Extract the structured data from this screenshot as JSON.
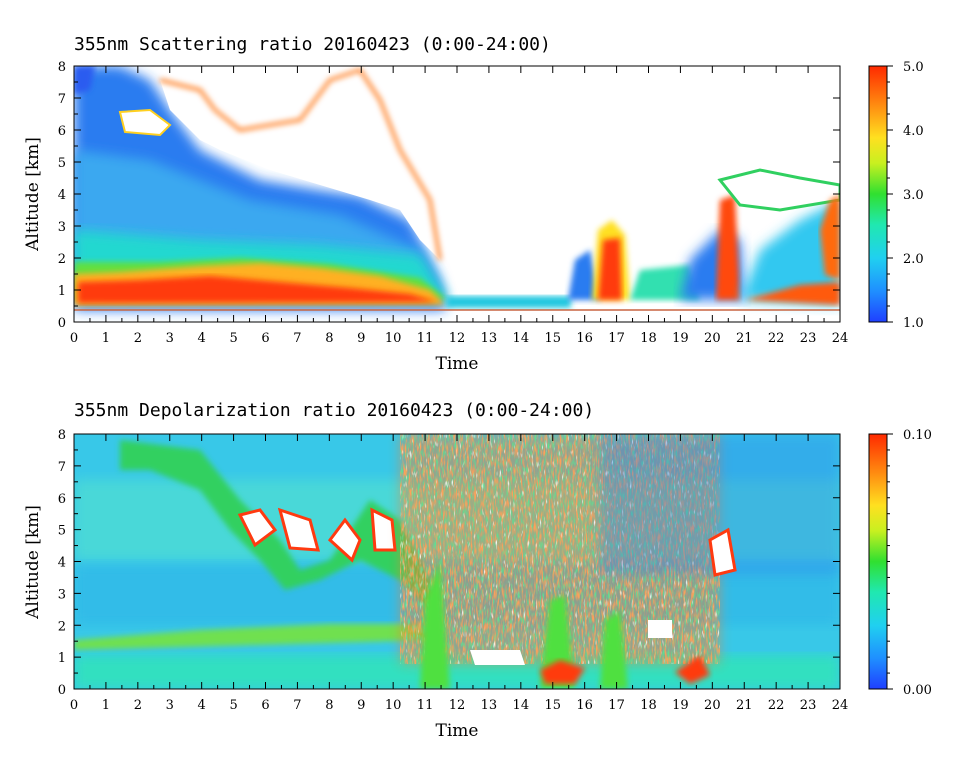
{
  "chart_data": [
    {
      "type": "heatmap",
      "title": "355nm Scattering ratio  20160423 (0:00-24:00)",
      "xlabel": "Time",
      "ylabel": "Altitude [km]",
      "xlim": [
        0,
        24
      ],
      "ylim": [
        0,
        8
      ],
      "x_ticks": [
        "0",
        "1",
        "2",
        "3",
        "4",
        "5",
        "6",
        "7",
        "8",
        "9",
        "10",
        "11",
        "12",
        "13",
        "14",
        "15",
        "16",
        "17",
        "18",
        "19",
        "20",
        "21",
        "22",
        "23",
        "24"
      ],
      "y_ticks": [
        "0",
        "1",
        "2",
        "3",
        "4",
        "5",
        "6",
        "7",
        "8"
      ],
      "colorbar": {
        "min": 1.0,
        "max": 5.0,
        "ticks": [
          "1.0",
          "2.0",
          "3.0",
          "4.0",
          "5.0"
        ],
        "colormap": "rainbow (blue-cyan-green-yellow-orange-red)"
      },
      "features": {
        "low_layer": {
          "altitude_km": [
            0.5,
            1.6
          ],
          "time_h": [
            0,
            12
          ],
          "value": 4.5
        },
        "clouds_over_range": {
          "time_h": [
            2.5,
            12
          ],
          "altitude_km": [
            3,
            8
          ]
        },
        "afternoon_gap_white": {
          "time_h": [
            12,
            15.5
          ],
          "altitude_km": [
            0.8,
            8
          ]
        },
        "evening_clouds": {
          "time_h": [
            16,
            24
          ],
          "altitude_km": [
            0.5,
            5
          ]
        }
      }
    },
    {
      "type": "heatmap",
      "title": "355nm Depolarization ratio  20160423 (0:00-24:00)",
      "xlabel": "Time",
      "ylabel": "Altitude [km]",
      "xlim": [
        0,
        24
      ],
      "ylim": [
        0,
        8
      ],
      "x_ticks": [
        "0",
        "1",
        "2",
        "3",
        "4",
        "5",
        "6",
        "7",
        "8",
        "9",
        "10",
        "11",
        "12",
        "13",
        "14",
        "15",
        "16",
        "17",
        "18",
        "19",
        "20",
        "21",
        "22",
        "23",
        "24"
      ],
      "y_ticks": [
        "0",
        "1",
        "2",
        "3",
        "4",
        "5",
        "6",
        "7",
        "8"
      ],
      "colorbar": {
        "min": 0.0,
        "max": 0.1,
        "ticks": [
          "0.00",
          "0.10"
        ],
        "colormap": "rainbow (blue-cyan-green-yellow-orange-red)"
      },
      "features": {
        "background_value": 0.03,
        "noisy_region": {
          "time_h": [
            11,
            20
          ],
          "altitude_km": [
            1,
            8
          ]
        },
        "layer_near_2km": {
          "altitude_km": [
            1.7,
            2.1
          ],
          "value": 0.045
        }
      }
    }
  ]
}
